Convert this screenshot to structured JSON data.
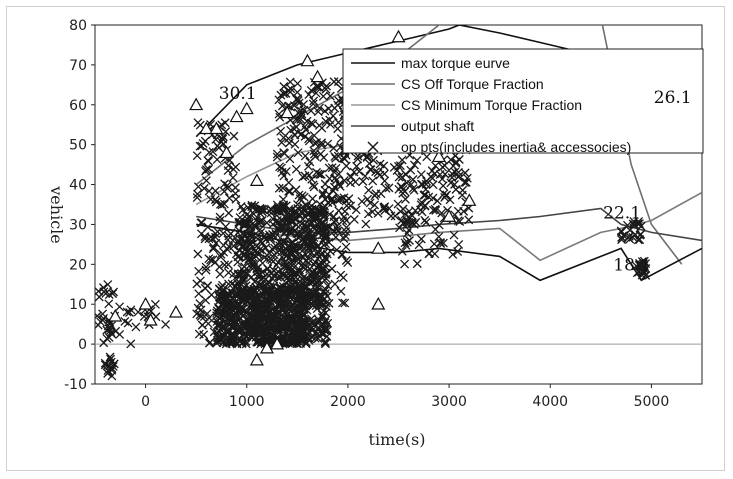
{
  "chart_data": {
    "type": "scatter",
    "title": "",
    "xlabel": "time(s)",
    "ylabel": "vehicle",
    "xlim": [
      -500,
      5500
    ],
    "ylim": [
      -10,
      80
    ],
    "x_ticks": [
      "0",
      "1000",
      "2000",
      "3000",
      "4000",
      "5000"
    ],
    "y_ticks": [
      "-10",
      "0",
      "10",
      "20",
      "30",
      "40",
      "50",
      "60",
      "70",
      "80"
    ],
    "grid": false,
    "legend_position": "top-right",
    "series": [
      {
        "name": "max torque eurve",
        "kind": "line",
        "color": "#111111",
        "x": [
          500,
          1000,
          1500,
          2000,
          2500,
          3000,
          3100,
          3500,
          4000,
          4500,
          5000,
          5500
        ],
        "y": [
          52,
          65,
          70,
          73,
          76,
          79,
          80,
          78,
          75,
          72,
          70,
          68
        ]
      },
      {
        "name": "CS Off Torque Fraction",
        "kind": "line",
        "color": "#6e6e6e",
        "x": [
          500,
          1000,
          1500,
          2000,
          2500,
          3000,
          3500,
          4000,
          4500,
          4800,
          5000,
          5300
        ],
        "y": [
          40,
          50,
          57,
          64,
          72,
          82,
          82,
          82,
          82,
          45,
          30,
          20
        ]
      },
      {
        "name": "CS Minimum Torque Fraction",
        "kind": "line",
        "color": "#9a9a9a",
        "x": [
          500,
          1000,
          1500,
          2000,
          2500,
          3000,
          3500,
          4000,
          4500,
          5000,
          5300
        ],
        "y": [
          35,
          42,
          48,
          50,
          51,
          52,
          53,
          53,
          52,
          51,
          50
        ]
      },
      {
        "name": "output shaft",
        "kind": "line",
        "color": "#444444",
        "x": [
          500,
          1000,
          1500,
          2000,
          2500,
          2900,
          3500,
          3900,
          4500,
          4700,
          5000,
          5500
        ],
        "y": [
          32,
          30,
          28,
          28,
          29,
          30,
          31,
          32,
          34,
          30,
          28,
          26
        ]
      },
      {
        "name": "",
        "kind": "line",
        "color": "#7a7a7a",
        "x": [
          500,
          1000,
          1500,
          2000,
          2500,
          2900,
          3500,
          3900,
          4500,
          4700,
          5000,
          5500
        ],
        "y": [
          30,
          28,
          27,
          26,
          27,
          28,
          29,
          21,
          28,
          29,
          31,
          38
        ]
      },
      {
        "name": "",
        "kind": "line",
        "color": "#111111",
        "x": [
          500,
          1000,
          1500,
          2000,
          2500,
          2900,
          3500,
          3900,
          4500,
          4700,
          4900,
          5500
        ],
        "y": [
          30,
          28,
          25,
          23,
          23,
          24,
          22,
          16,
          22,
          24,
          16,
          24
        ]
      },
      {
        "name": "op pts(includes inertia& accessocies)",
        "kind": "scatter-x",
        "color": "#1a1a1a",
        "clusters": [
          {
            "x": [
              -500,
              -300
            ],
            "y": [
              0,
              15
            ],
            "n": 30
          },
          {
            "x": [
              -400,
              -300
            ],
            "y": [
              -8,
              -3
            ],
            "n": 15
          },
          {
            "x": [
              -300,
              200
            ],
            "y": [
              0,
              10
            ],
            "n": 20
          },
          {
            "x": [
              500,
              900
            ],
            "y": [
              0,
              56
            ],
            "n": 150
          },
          {
            "x": [
              700,
              1600
            ],
            "y": [
              0,
              15
            ],
            "n": 550
          },
          {
            "x": [
              900,
              1800
            ],
            "y": [
              0,
              35
            ],
            "n": 650
          },
          {
            "x": [
              1300,
              2000
            ],
            "y": [
              10,
              66
            ],
            "n": 300
          },
          {
            "x": [
              1800,
              3200
            ],
            "y": [
              30,
              50
            ],
            "n": 180
          },
          {
            "x": [
              2500,
              3100
            ],
            "y": [
              20,
              45
            ],
            "n": 60
          },
          {
            "x": [
              4700,
              4900
            ],
            "y": [
              26,
              31
            ],
            "n": 25
          },
          {
            "x": [
              4850,
              4950
            ],
            "y": [
              17,
              21
            ],
            "n": 25
          },
          {
            "x": [
              5300,
              5400
            ],
            "y": [
              58,
              61
            ],
            "n": 25
          }
        ]
      },
      {
        "name": "",
        "kind": "scatter-triangle",
        "color": "#111111",
        "x": [
          -300,
          0,
          50,
          300,
          500,
          600,
          700,
          800,
          900,
          1000,
          1100,
          1100,
          1200,
          1300,
          1400,
          1600,
          1700,
          2300,
          2300,
          2500,
          2900,
          3000,
          3200
        ],
        "y": [
          7,
          10,
          6,
          8,
          60,
          54,
          54,
          48,
          57,
          59,
          41,
          -4,
          -1,
          0,
          58,
          71,
          67,
          24,
          10,
          77,
          47,
          32,
          36
        ]
      }
    ],
    "annotations": [
      {
        "text": "30.1",
        "x": 1000,
        "y": 63
      },
      {
        "text": "26.1",
        "x": 5300,
        "y": 62
      },
      {
        "text": "22.1",
        "x": 4800,
        "y": 33
      },
      {
        "text": "18.1",
        "x": 4900,
        "y": 20
      }
    ]
  }
}
